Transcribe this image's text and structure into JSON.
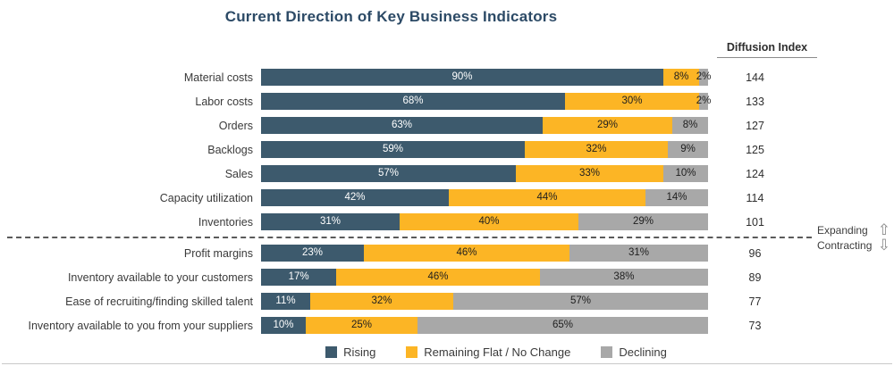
{
  "title": "Current Direction of Key Business Indicators",
  "diffusion_header": "Diffusion Index",
  "annotations": {
    "expanding": "Expanding",
    "contracting": "Contracting"
  },
  "legend": [
    {
      "key": "rising",
      "label": "Rising",
      "color": "#3d5a6d"
    },
    {
      "key": "flat",
      "label": "Remaining Flat / No Change",
      "color": "#fcb525"
    },
    {
      "key": "declining",
      "label": "Declining",
      "color": "#a8a8a8"
    }
  ],
  "chart_data": {
    "type": "bar",
    "orientation": "horizontal",
    "stacked": true,
    "title": "Current Direction of Key Business Indicators",
    "categories": [
      "Material costs",
      "Labor costs",
      "Orders",
      "Backlogs",
      "Sales",
      "Capacity utilization",
      "Inventories",
      "Profit margins",
      "Inventory available to your customers",
      "Ease of recruiting/finding skilled talent",
      "Inventory available to you from your suppliers"
    ],
    "series": [
      {
        "name": "Rising",
        "values": [
          90,
          68,
          63,
          59,
          57,
          42,
          31,
          23,
          17,
          11,
          10
        ]
      },
      {
        "name": "Remaining Flat / No Change",
        "values": [
          8,
          30,
          29,
          32,
          33,
          44,
          40,
          46,
          46,
          32,
          25
        ]
      },
      {
        "name": "Declining",
        "values": [
          2,
          2,
          8,
          9,
          10,
          14,
          29,
          31,
          38,
          57,
          65
        ]
      }
    ],
    "diffusion_index": [
      144,
      133,
      127,
      125,
      124,
      114,
      101,
      96,
      89,
      77,
      73
    ],
    "divider_after_index": 7,
    "xlim": [
      0,
      100
    ],
    "value_suffix": "%",
    "legend_position": "bottom",
    "grid": false
  }
}
